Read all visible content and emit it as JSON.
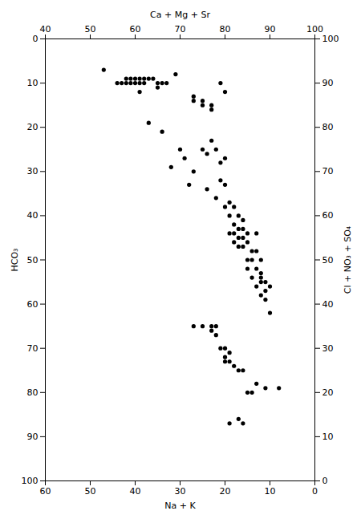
{
  "chart_data": {
    "type": "scatter",
    "xlabel": "Na + K",
    "x2label": "Ca + Mg + Sr",
    "ylabel": "HCO₃",
    "y2label": "Cl + NO₃ + SO₄",
    "xlim": [
      60,
      0
    ],
    "xticks": [
      60,
      50,
      40,
      30,
      20,
      10,
      0
    ],
    "x2lim": [
      40,
      100
    ],
    "x2ticks": [
      40,
      50,
      60,
      70,
      80,
      90,
      100
    ],
    "ylim": [
      100,
      0
    ],
    "yticks": [
      0,
      10,
      20,
      30,
      40,
      50,
      60,
      70,
      80,
      90,
      100
    ],
    "y2lim": [
      0,
      100
    ],
    "y2ticks": [
      100,
      90,
      80,
      70,
      60,
      50,
      40,
      30,
      20,
      10,
      0
    ],
    "color": "#000000",
    "grid": false,
    "x": [
      47,
      44,
      43,
      42,
      42,
      41,
      41,
      40,
      40,
      39,
      39,
      39,
      38,
      38,
      37,
      36,
      35,
      35,
      34,
      33,
      31,
      27,
      27,
      25,
      25,
      23,
      23,
      21,
      20,
      37,
      34,
      32,
      30,
      29,
      28,
      27,
      25,
      24,
      24,
      23,
      22,
      22,
      21,
      21,
      20,
      20,
      20,
      19,
      19,
      19,
      18,
      18,
      18,
      18,
      17,
      17,
      17,
      17,
      16,
      16,
      16,
      16,
      15,
      15,
      15,
      15,
      14,
      14,
      14,
      13,
      13,
      13,
      13,
      12,
      12,
      12,
      12,
      12,
      11,
      11,
      11,
      10,
      10,
      27,
      25,
      23,
      23,
      22,
      22,
      21,
      20,
      20,
      20,
      19,
      19,
      18,
      17,
      16,
      15,
      14,
      17,
      19,
      8,
      11,
      16,
      13
    ],
    "values": [
      7,
      10,
      10,
      9,
      10,
      9,
      10,
      9,
      10,
      9,
      10,
      12,
      9,
      10,
      9,
      9,
      10,
      11,
      10,
      10,
      8,
      13,
      14,
      14,
      15,
      15,
      16,
      10,
      12,
      19,
      21,
      29,
      25,
      27,
      33,
      30,
      25,
      26,
      34,
      23,
      25,
      36,
      28,
      32,
      27,
      33,
      38,
      37,
      40,
      44,
      38,
      42,
      44,
      46,
      40,
      43,
      45,
      47,
      41,
      43,
      45,
      47,
      44,
      46,
      50,
      52,
      48,
      50,
      54,
      44,
      48,
      52,
      56,
      50,
      53,
      54,
      55,
      58,
      55,
      57,
      59,
      56,
      62,
      65,
      65,
      65,
      66,
      65,
      67,
      70,
      70,
      72,
      73,
      71,
      73,
      74,
      75,
      75,
      80,
      80,
      86,
      87,
      79,
      79,
      87,
      78
    ]
  }
}
